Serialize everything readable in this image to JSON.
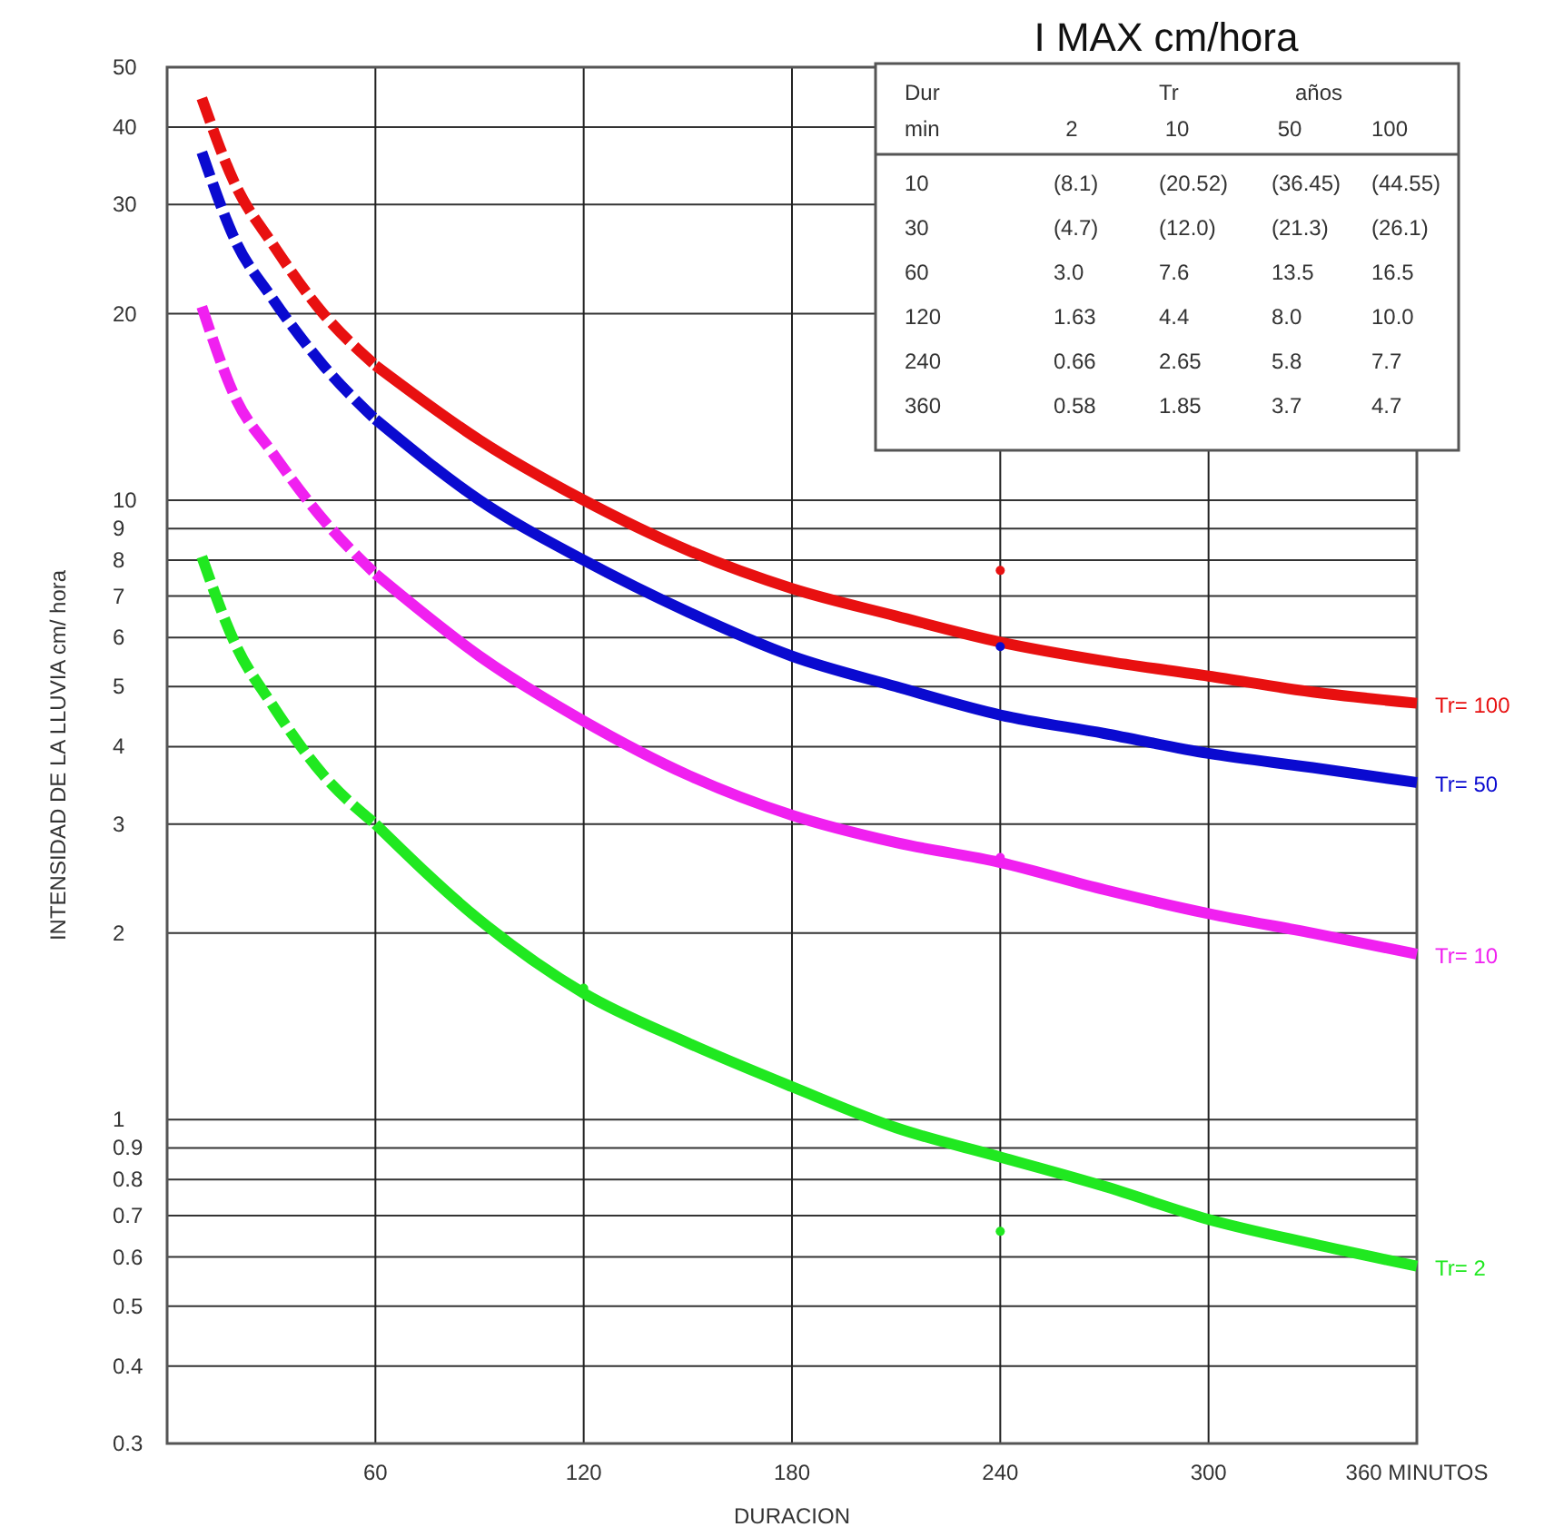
{
  "chart_data": {
    "type": "line",
    "title": "I MAX  cm/hora",
    "xlabel": "DURACION",
    "ylabel": "INTENSIDAD DE LA LLUVIA cm/ hora",
    "log": "y",
    "grid": true,
    "xlim": [
      0,
      360
    ],
    "xticks": [
      60,
      120,
      180,
      240,
      300,
      {
        "value": 360,
        "label": "360 MINUTOS"
      }
    ],
    "ylim": [
      0.3,
      50
    ],
    "yticks": [
      0.3,
      0.4,
      0.5,
      0.6,
      0.7,
      0.8,
      0.9,
      1,
      2,
      3,
      4,
      5,
      6,
      7,
      8,
      9,
      10,
      20,
      30,
      40,
      50
    ],
    "series": [
      {
        "color": "#e81010",
        "line_style": "dashed",
        "x": [
          10,
          20,
          30,
          45,
          60
        ],
        "values": [
          44.55,
          32,
          26.1,
          20,
          16.5
        ]
      },
      {
        "name": "Tr= 100",
        "color": "#e81010",
        "line_style": "solid",
        "x": [
          60,
          90,
          120,
          150,
          180,
          210,
          240,
          270,
          300,
          330,
          360
        ],
        "values": [
          16.5,
          12.5,
          10.0,
          8.3,
          7.2,
          6.5,
          5.9,
          5.5,
          5.2,
          4.9,
          4.7
        ]
      },
      {
        "color": "#0a0ad0",
        "line_style": "dashed",
        "x": [
          10,
          20,
          30,
          45,
          60
        ],
        "values": [
          36.45,
          26,
          21.3,
          16.5,
          13.5
        ]
      },
      {
        "name": "Tr= 50",
        "color": "#0a0ad0",
        "line_style": "solid",
        "x": [
          60,
          90,
          120,
          150,
          180,
          210,
          240,
          270,
          300,
          330,
          360
        ],
        "values": [
          13.5,
          10,
          8.0,
          6.6,
          5.6,
          5.0,
          4.5,
          4.2,
          3.9,
          3.7,
          3.5
        ]
      },
      {
        "color": "#f020f0",
        "line_style": "dashed",
        "x": [
          10,
          20,
          30,
          45,
          60
        ],
        "values": [
          20.52,
          14.5,
          12.0,
          9.3,
          7.6
        ]
      },
      {
        "name": "Tr= 10",
        "color": "#f020f0",
        "line_style": "solid",
        "x": [
          60,
          90,
          120,
          150,
          180,
          210,
          240,
          270,
          300,
          330,
          360
        ],
        "values": [
          7.6,
          5.6,
          4.4,
          3.6,
          3.1,
          2.8,
          2.6,
          2.35,
          2.15,
          2.0,
          1.85
        ]
      },
      {
        "color": "#20e820",
        "line_style": "dashed",
        "x": [
          10,
          20,
          30,
          45,
          60
        ],
        "values": [
          8.1,
          5.8,
          4.7,
          3.6,
          3.0
        ]
      },
      {
        "name": "Tr= 2",
        "color": "#20e820",
        "line_style": "solid",
        "x": [
          60,
          90,
          120,
          150,
          180,
          210,
          240,
          270,
          300,
          330,
          360
        ],
        "values": [
          3.0,
          2.1,
          1.6,
          1.33,
          1.13,
          0.97,
          0.87,
          0.78,
          0.69,
          0.63,
          0.58
        ]
      },
      {
        "type": "scatter",
        "color": "#e81010",
        "x": [
          240
        ],
        "values": [
          7.7
        ]
      },
      {
        "type": "scatter",
        "color": "#0a0ad0",
        "x": [
          240
        ],
        "values": [
          5.8
        ]
      },
      {
        "type": "scatter",
        "color": "#f020f0",
        "x": [
          240
        ],
        "values": [
          2.65
        ]
      },
      {
        "type": "scatter",
        "color": "#20e820",
        "x": [
          120,
          240
        ],
        "values": [
          1.63,
          0.66
        ]
      }
    ],
    "annotations": [
      "Dur",
      "Tr",
      "años",
      "min",
      "2",
      "10",
      "50",
      "100",
      "10",
      "(8.1)",
      "(20.52)",
      "(36.45)",
      "(44.55)",
      "30",
      "(4.7)",
      "(12.0)",
      "(21.3)",
      "(26.1)",
      "60",
      "3.0",
      "7.6",
      "13.5",
      "16.5",
      "120",
      "1.63",
      "4.4",
      "8.0",
      "10.0",
      "240",
      "0.66",
      "2.65",
      "5.8",
      "7.7",
      "360",
      "0.58",
      "1.85",
      "3.7",
      "4.7"
    ]
  }
}
